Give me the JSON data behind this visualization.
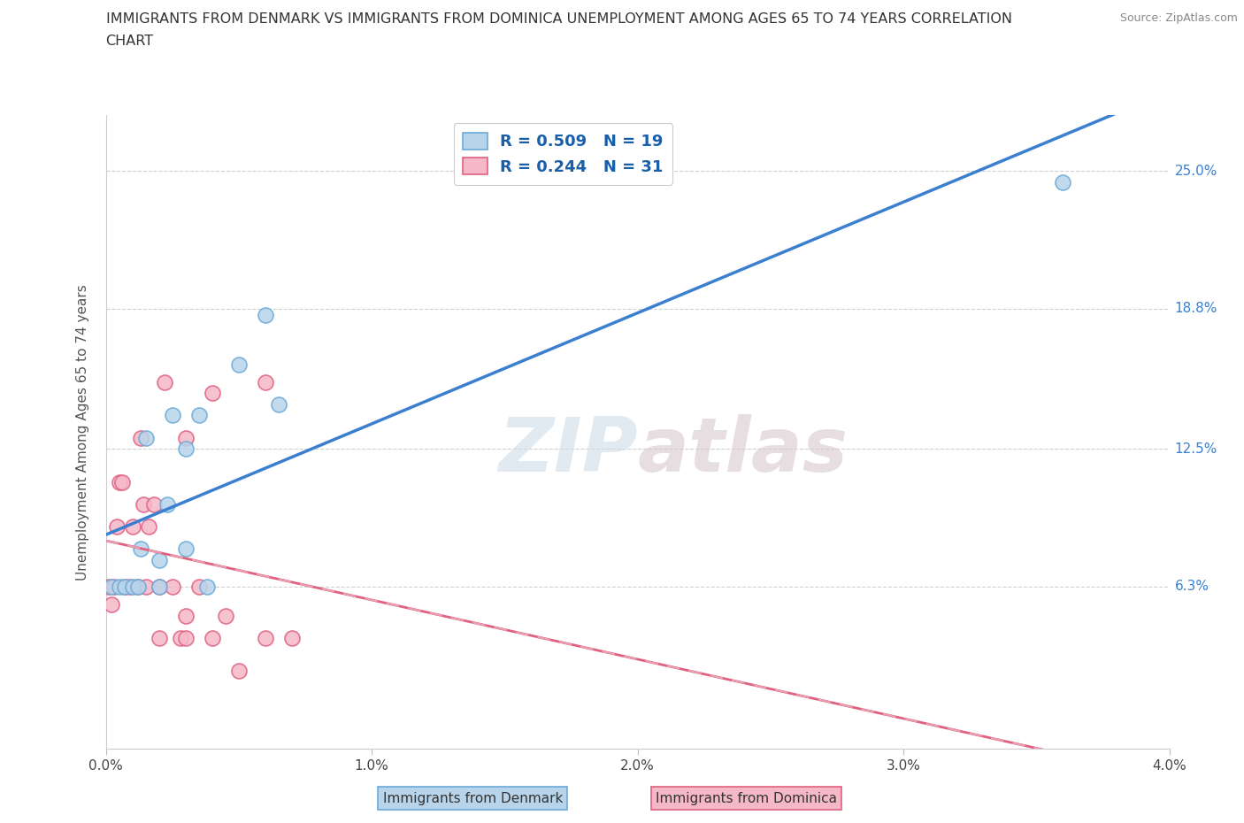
{
  "title_line1": "IMMIGRANTS FROM DENMARK VS IMMIGRANTS FROM DOMINICA UNEMPLOYMENT AMONG AGES 65 TO 74 YEARS CORRELATION",
  "title_line2": "CHART",
  "source": "Source: ZipAtlas.com",
  "ylabel": "Unemployment Among Ages 65 to 74 years",
  "xlim": [
    0.0,
    0.04
  ],
  "ylim": [
    -0.01,
    0.275
  ],
  "xtick_labels": [
    "0.0%",
    "1.0%",
    "2.0%",
    "3.0%",
    "4.0%"
  ],
  "xtick_vals": [
    0.0,
    0.01,
    0.02,
    0.03,
    0.04
  ],
  "ytick_labels": [
    "6.3%",
    "12.5%",
    "18.8%",
    "25.0%"
  ],
  "ytick_vals": [
    0.063,
    0.125,
    0.188,
    0.25
  ],
  "denmark_fill": "#b8d4ea",
  "dominica_fill": "#f5b8c8",
  "denmark_edge": "#6aaad8",
  "dominica_edge": "#e06080",
  "line_denmark_color": "#3a7fd0",
  "line_dominica_color": "#e06080",
  "line_dominica_dashed_color": "#e8a0b0",
  "R_denmark": "0.509",
  "N_denmark": "19",
  "R_dominica": "0.244",
  "N_dominica": "31",
  "denmark_label": "Immigrants from Denmark",
  "dominica_label": "Immigrants from Dominica",
  "denmark_x": [
    0.0002,
    0.0005,
    0.0007,
    0.001,
    0.0012,
    0.0013,
    0.0015,
    0.002,
    0.002,
    0.0023,
    0.0025,
    0.003,
    0.003,
    0.0035,
    0.0038,
    0.005,
    0.006,
    0.0065,
    0.036
  ],
  "denmark_y": [
    0.063,
    0.063,
    0.063,
    0.063,
    0.063,
    0.08,
    0.13,
    0.075,
    0.063,
    0.1,
    0.14,
    0.125,
    0.08,
    0.14,
    0.063,
    0.163,
    0.185,
    0.145,
    0.245
  ],
  "dominica_x": [
    0.0001,
    0.0002,
    0.0003,
    0.0004,
    0.0005,
    0.0006,
    0.0007,
    0.0009,
    0.001,
    0.0012,
    0.0013,
    0.0014,
    0.0015,
    0.0016,
    0.0018,
    0.002,
    0.002,
    0.0022,
    0.0025,
    0.0028,
    0.003,
    0.003,
    0.003,
    0.0035,
    0.004,
    0.004,
    0.0045,
    0.005,
    0.006,
    0.006,
    0.007
  ],
  "dominica_y": [
    0.063,
    0.055,
    0.063,
    0.09,
    0.11,
    0.11,
    0.063,
    0.063,
    0.09,
    0.063,
    0.13,
    0.1,
    0.063,
    0.09,
    0.1,
    0.063,
    0.04,
    0.155,
    0.063,
    0.04,
    0.04,
    0.05,
    0.13,
    0.063,
    0.15,
    0.04,
    0.05,
    0.025,
    0.04,
    0.155,
    0.04
  ]
}
